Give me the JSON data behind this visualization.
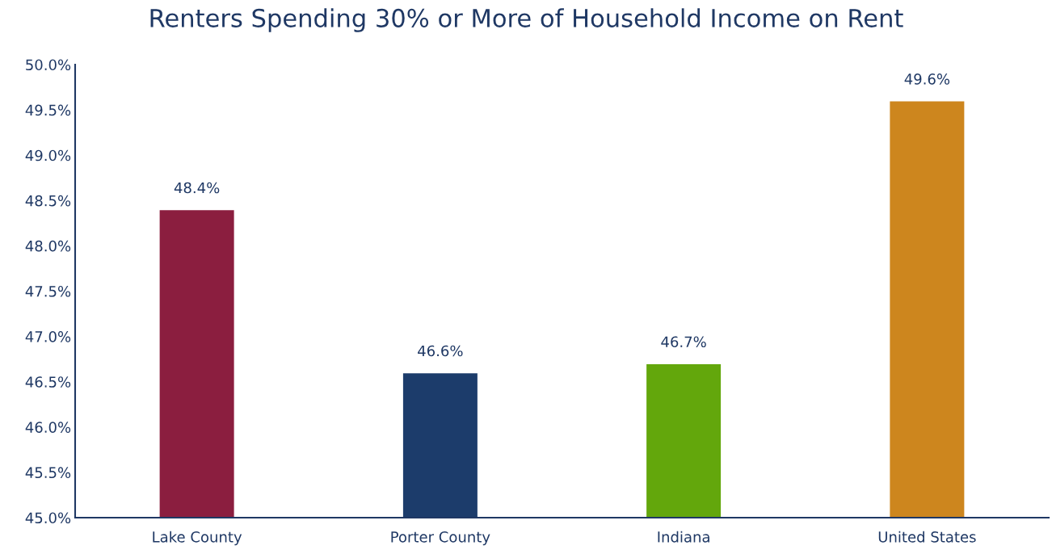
{
  "chart_data": {
    "type": "bar",
    "title": "Renters Spending 30% or More of Household Income on Rent",
    "categories": [
      "Lake County",
      "Porter County",
      "Indiana",
      "United States"
    ],
    "values": [
      48.4,
      46.6,
      46.7,
      49.6
    ],
    "colors": [
      "#8b1e3f",
      "#1c3c6b",
      "#63a70c",
      "#cd861e"
    ],
    "value_labels": [
      "48.4%",
      "46.6%",
      "46.7%",
      "49.6%"
    ],
    "ylim": [
      45,
      50
    ],
    "yticks": [
      {
        "value": 45,
        "label": "45.0%"
      },
      {
        "value": 45.5,
        "label": "45.5%"
      },
      {
        "value": 46,
        "label": "46.0%"
      },
      {
        "value": 46.5,
        "label": "46.5%"
      },
      {
        "value": 47,
        "label": "47.0%"
      },
      {
        "value": 47.5,
        "label": "47.5%"
      },
      {
        "value": 48,
        "label": "48.0%"
      },
      {
        "value": 48.5,
        "label": "48.5%"
      },
      {
        "value": 49,
        "label": "49.0%"
      },
      {
        "value": 49.5,
        "label": "49.5%"
      },
      {
        "value": 50,
        "label": "50.0%"
      }
    ],
    "grid": false,
    "legend": false
  }
}
